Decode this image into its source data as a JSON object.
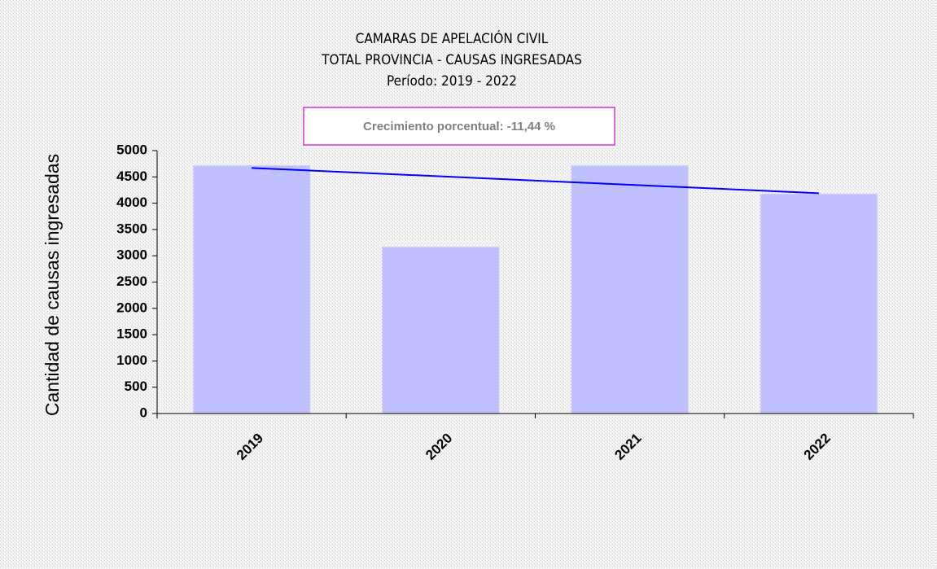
{
  "chart_data": {
    "type": "bar",
    "title": [
      "CAMARAS DE APELACIÓN CIVIL",
      "TOTAL PROVINCIA - CAUSAS INGRESADAS",
      "Período: 2019 - 2022"
    ],
    "annotation": "Crecimiento porcentual: -11,44 %",
    "y_label": "Cantidad  de causas ingresadas",
    "categories": [
      "2019",
      "2020",
      "2021",
      "2022"
    ],
    "values": [
      4720,
      3170,
      4720,
      4180
    ],
    "color": "#c0c0ff",
    "trend": {
      "color": "#0000ff",
      "values": [
        4670,
        4190
      ]
    },
    "ylim": [
      0,
      5000
    ],
    "yticks": [
      0,
      500,
      1000,
      1500,
      2000,
      2500,
      3000,
      3500,
      4000,
      4500,
      5000
    ]
  }
}
